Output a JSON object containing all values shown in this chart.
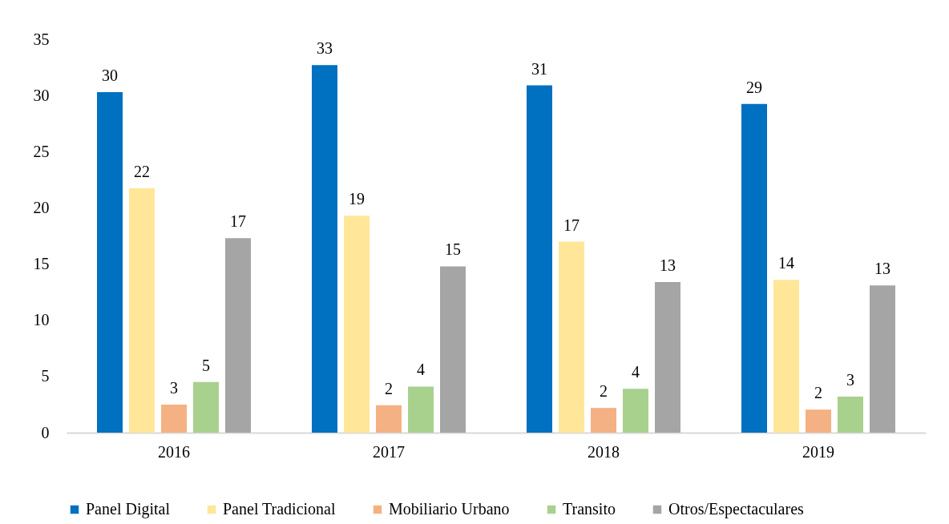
{
  "chart_data": {
    "type": "bar",
    "categories": [
      "2016",
      "2017",
      "2018",
      "2019"
    ],
    "series": [
      {
        "name": "Panel Digital",
        "color": "#0070c0",
        "values": [
          30.3,
          32.7,
          30.9,
          29.25
        ],
        "value_labels": [
          "30",
          "33",
          "31",
          "29"
        ]
      },
      {
        "name": "Panel Tradicional",
        "color": "#ffe699",
        "values": [
          21.75,
          19.3,
          17.0,
          13.6
        ],
        "value_labels": [
          "22",
          "19",
          "17",
          "14"
        ]
      },
      {
        "name": "Mobiliario Urbano",
        "color": "#f4b183",
        "values": [
          2.5,
          2.45,
          2.2,
          2.05
        ],
        "value_labels": [
          "3",
          "2",
          "2",
          "2"
        ]
      },
      {
        "name": "Transito",
        "color": "#a9d18e",
        "values": [
          4.5,
          4.1,
          3.9,
          3.2
        ],
        "value_labels": [
          "5",
          "4",
          "4",
          "3"
        ]
      },
      {
        "name": "Otros/Espectaculares",
        "color": "#a5a5a5",
        "values": [
          17.3,
          14.8,
          13.4,
          13.1
        ],
        "value_labels": [
          "17",
          "15",
          "13",
          "13"
        ]
      }
    ],
    "ylim": [
      0,
      35
    ],
    "yticks": [
      0,
      5,
      10,
      15,
      20,
      25,
      30,
      35
    ],
    "grid": false,
    "legend": "bottom"
  }
}
